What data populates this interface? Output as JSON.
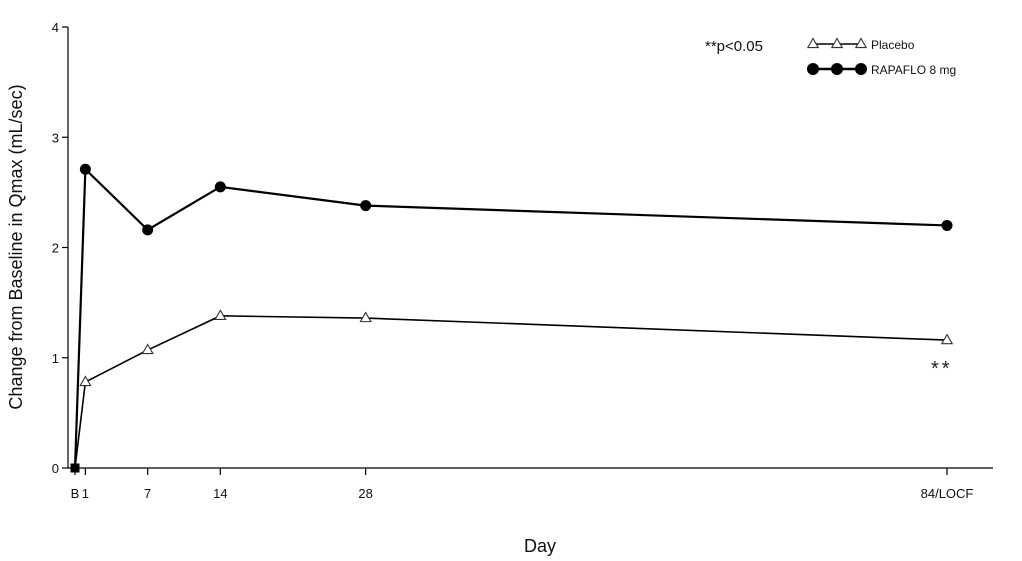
{
  "chart_data": {
    "type": "line",
    "xlabel": "Day",
    "ylabel": "Change from Baseline in Qmax (mL/sec)",
    "categories": [
      "B",
      "1",
      "7",
      "14",
      "28",
      "84/LOCF"
    ],
    "x_positions": [
      0,
      1,
      7,
      14,
      28,
      84
    ],
    "ylim": [
      0,
      4
    ],
    "yticks": [
      "0",
      "1",
      "2",
      "3",
      "4"
    ],
    "grid": false,
    "legend_position": "top-right",
    "significance_note": "**p<0.05",
    "significance_mark": "**",
    "series": [
      {
        "name": "Placebo",
        "marker": "open-triangle",
        "values": [
          0,
          0.78,
          1.07,
          1.38,
          1.36,
          1.16
        ]
      },
      {
        "name": "RAPAFLO 8 mg",
        "marker": "filled-circle",
        "values": [
          0,
          2.71,
          2.16,
          2.55,
          2.38,
          2.2
        ]
      }
    ]
  }
}
